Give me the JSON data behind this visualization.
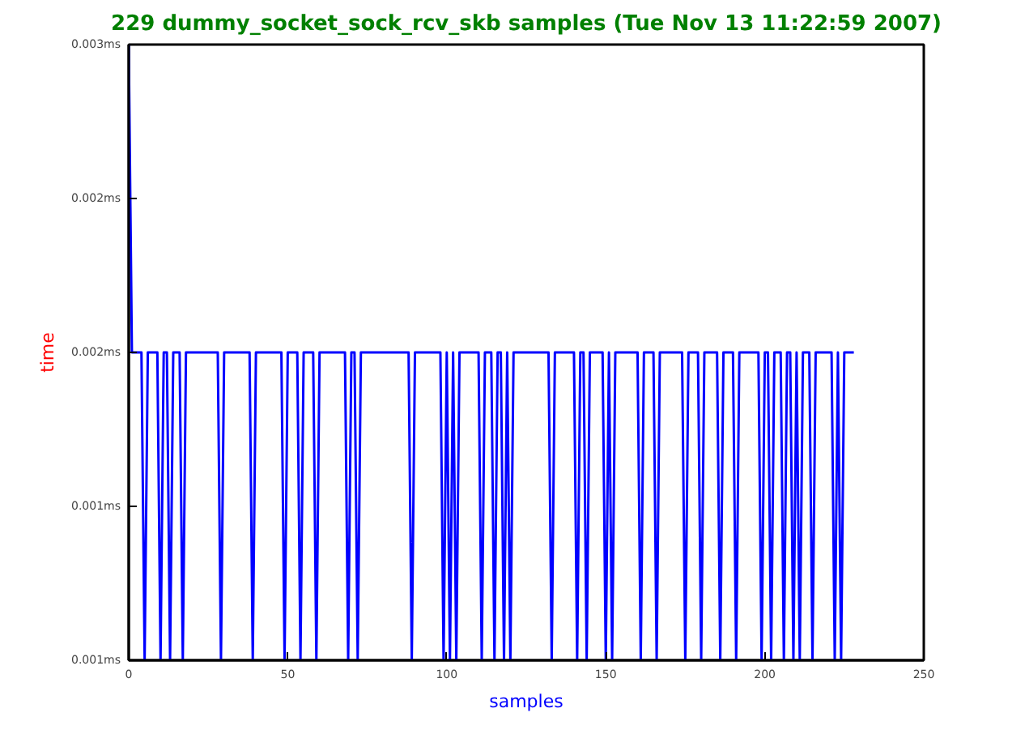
{
  "chart_data": {
    "type": "line",
    "title": "229 dummy_socket_sock_rcv_skb samples (Tue Nov 13 11:22:59 2007)",
    "xlabel": "samples",
    "ylabel": "time",
    "x": [
      0,
      1,
      2,
      3,
      4,
      5,
      6,
      7,
      8,
      9,
      10,
      11,
      12,
      13,
      14,
      15,
      16,
      17,
      18,
      19,
      20,
      21,
      22,
      23,
      24,
      25,
      26,
      27,
      28,
      29,
      30,
      31,
      32,
      33,
      34,
      35,
      36,
      37,
      38,
      39,
      40,
      41,
      42,
      43,
      44,
      45,
      46,
      47,
      48,
      49,
      50,
      51,
      52,
      53,
      54,
      55,
      56,
      57,
      58,
      59,
      60,
      61,
      62,
      63,
      64,
      65,
      66,
      67,
      68,
      69,
      70,
      71,
      72,
      73,
      74,
      75,
      76,
      77,
      78,
      79,
      80,
      81,
      82,
      83,
      84,
      85,
      86,
      87,
      88,
      89,
      90,
      91,
      92,
      93,
      94,
      95,
      96,
      97,
      98,
      99,
      100,
      101,
      102,
      103,
      104,
      105,
      106,
      107,
      108,
      109,
      110,
      111,
      112,
      113,
      114,
      115,
      116,
      117,
      118,
      119,
      120,
      121,
      122,
      123,
      124,
      125,
      126,
      127,
      128,
      129,
      130,
      131,
      132,
      133,
      134,
      135,
      136,
      137,
      138,
      139,
      140,
      141,
      142,
      143,
      144,
      145,
      146,
      147,
      148,
      149,
      150,
      151,
      152,
      153,
      154,
      155,
      156,
      157,
      158,
      159,
      160,
      161,
      162,
      163,
      164,
      165,
      166,
      167,
      168,
      169,
      170,
      171,
      172,
      173,
      174,
      175,
      176,
      177,
      178,
      179,
      180,
      181,
      182,
      183,
      184,
      185,
      186,
      187,
      188,
      189,
      190,
      191,
      192,
      193,
      194,
      195,
      196,
      197,
      198,
      199,
      200,
      201,
      202,
      203,
      204,
      205,
      206,
      207,
      208,
      209,
      210,
      211,
      212,
      213,
      214,
      215,
      216,
      217,
      218,
      219,
      220,
      221,
      222,
      223,
      224,
      225,
      226,
      227,
      228
    ],
    "series": [
      {
        "color": "#0000ff",
        "values": [
          0.003,
          0.002,
          0.002,
          0.002,
          0.002,
          0.001,
          0.002,
          0.002,
          0.002,
          0.002,
          0.001,
          0.002,
          0.002,
          0.001,
          0.002,
          0.002,
          0.002,
          0.001,
          0.002,
          0.002,
          0.002,
          0.002,
          0.002,
          0.002,
          0.002,
          0.002,
          0.002,
          0.002,
          0.002,
          0.001,
          0.002,
          0.002,
          0.002,
          0.002,
          0.002,
          0.002,
          0.002,
          0.002,
          0.002,
          0.001,
          0.002,
          0.002,
          0.002,
          0.002,
          0.002,
          0.002,
          0.002,
          0.002,
          0.002,
          0.001,
          0.002,
          0.002,
          0.002,
          0.002,
          0.001,
          0.002,
          0.002,
          0.002,
          0.002,
          0.001,
          0.002,
          0.002,
          0.002,
          0.002,
          0.002,
          0.002,
          0.002,
          0.002,
          0.002,
          0.001,
          0.002,
          0.002,
          0.001,
          0.002,
          0.002,
          0.002,
          0.002,
          0.002,
          0.002,
          0.002,
          0.002,
          0.002,
          0.002,
          0.002,
          0.002,
          0.002,
          0.002,
          0.002,
          0.002,
          0.001,
          0.002,
          0.002,
          0.002,
          0.002,
          0.002,
          0.002,
          0.002,
          0.002,
          0.002,
          0.001,
          0.002,
          0.001,
          0.002,
          0.001,
          0.002,
          0.002,
          0.002,
          0.002,
          0.002,
          0.002,
          0.002,
          0.001,
          0.002,
          0.002,
          0.002,
          0.001,
          0.002,
          0.002,
          0.001,
          0.002,
          0.001,
          0.002,
          0.002,
          0.002,
          0.002,
          0.002,
          0.002,
          0.002,
          0.002,
          0.002,
          0.002,
          0.002,
          0.002,
          0.001,
          0.002,
          0.002,
          0.002,
          0.002,
          0.002,
          0.002,
          0.002,
          0.001,
          0.002,
          0.002,
          0.001,
          0.002,
          0.002,
          0.002,
          0.002,
          0.002,
          0.001,
          0.002,
          0.001,
          0.002,
          0.002,
          0.002,
          0.002,
          0.002,
          0.002,
          0.002,
          0.002,
          0.001,
          0.002,
          0.002,
          0.002,
          0.002,
          0.001,
          0.002,
          0.002,
          0.002,
          0.002,
          0.002,
          0.002,
          0.002,
          0.002,
          0.001,
          0.002,
          0.002,
          0.002,
          0.002,
          0.001,
          0.002,
          0.002,
          0.002,
          0.002,
          0.002,
          0.001,
          0.002,
          0.002,
          0.002,
          0.002,
          0.001,
          0.002,
          0.002,
          0.002,
          0.002,
          0.002,
          0.002,
          0.002,
          0.001,
          0.002,
          0.002,
          0.001,
          0.002,
          0.002,
          0.002,
          0.001,
          0.002,
          0.002,
          0.001,
          0.002,
          0.001,
          0.002,
          0.002,
          0.002,
          0.001,
          0.002,
          0.002,
          0.002,
          0.002,
          0.002,
          0.002,
          0.001,
          0.002,
          0.001,
          0.002,
          0.002,
          0.002,
          0.002
        ]
      }
    ],
    "xlim": [
      0,
      250
    ],
    "xticks": [
      0,
      50,
      100,
      150,
      200,
      250
    ],
    "ylim": [
      0.001,
      0.003
    ],
    "yticks": [
      {
        "value": 0.001,
        "label": "0.001ms"
      },
      {
        "value": 0.0015,
        "label": "0.001ms"
      },
      {
        "value": 0.002,
        "label": "0.002ms"
      },
      {
        "value": 0.0025,
        "label": "0.002ms"
      },
      {
        "value": 0.003,
        "label": "0.003ms"
      }
    ],
    "grid": false,
    "marker": "none",
    "line_style": "solid"
  }
}
